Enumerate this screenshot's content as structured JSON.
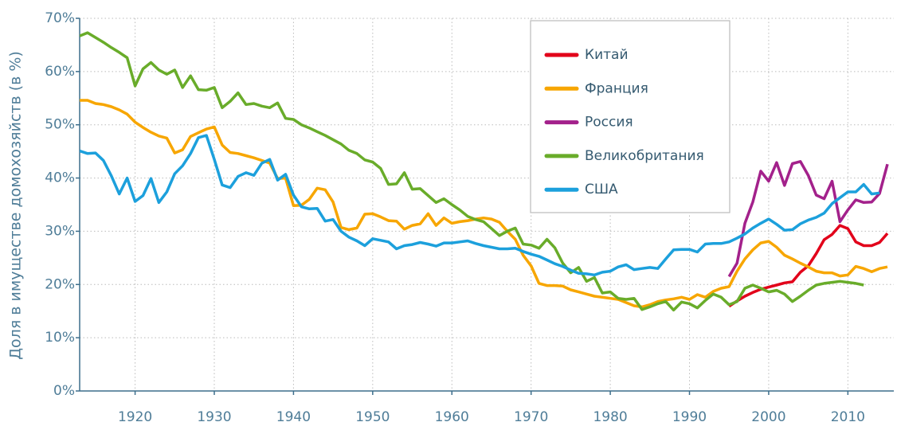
{
  "chart_data": {
    "type": "line",
    "y_label": "Доля в имуществе домохозяйств (в %)",
    "xlim": [
      1913,
      2015.8
    ],
    "xticks": [
      1920,
      1930,
      1940,
      1950,
      1960,
      1970,
      1980,
      1990,
      2000,
      2010
    ],
    "ylim": [
      0,
      70
    ],
    "yticks": [
      {
        "value": 0,
        "label": "0%"
      },
      {
        "value": 10,
        "label": "10%"
      },
      {
        "value": 20,
        "label": "20%"
      },
      {
        "value": 30,
        "label": "30%"
      },
      {
        "value": 40,
        "label": "40%"
      },
      {
        "value": 50,
        "label": "50%"
      },
      {
        "value": 60,
        "label": "60%"
      },
      {
        "value": 70,
        "label": "70%"
      }
    ],
    "grid": true,
    "legend": "upper right",
    "x": [
      1913,
      1914,
      1915,
      1916,
      1917,
      1918,
      1919,
      1920,
      1921,
      1922,
      1923,
      1924,
      1925,
      1926,
      1927,
      1928,
      1929,
      1930,
      1931,
      1932,
      1933,
      1934,
      1935,
      1936,
      1937,
      1938,
      1939,
      1940,
      1941,
      1942,
      1943,
      1944,
      1945,
      1946,
      1947,
      1948,
      1949,
      1950,
      1951,
      1952,
      1953,
      1954,
      1955,
      1956,
      1957,
      1958,
      1959,
      1960,
      1961,
      1962,
      1963,
      1964,
      1965,
      1966,
      1967,
      1968,
      1969,
      1970,
      1971,
      1972,
      1973,
      1974,
      1975,
      1976,
      1977,
      1978,
      1979,
      1980,
      1981,
      1982,
      1983,
      1984,
      1985,
      1986,
      1987,
      1988,
      1989,
      1990,
      1991,
      1992,
      1993,
      1994,
      1995,
      1996,
      1997,
      1998,
      1999,
      2000,
      2001,
      2002,
      2003,
      2004,
      2005,
      2006,
      2007,
      2008,
      2009,
      2010,
      2011,
      2012,
      2013,
      2014,
      2015
    ],
    "series": [
      {
        "name": "Китай",
        "color": "#e2001a",
        "x": [
          1995,
          1996,
          1997,
          1998,
          1999,
          2000,
          2001,
          2002,
          2003,
          2004,
          2005,
          2006,
          2007,
          2008,
          2009,
          2010,
          2011,
          2012,
          2013,
          2014,
          2015
        ],
        "values": [
          15.9,
          16.9,
          17.8,
          18.5,
          19.1,
          19.5,
          19.9,
          20.3,
          20.5,
          22.3,
          23.5,
          25.8,
          28.4,
          29.4,
          31.1,
          30.5,
          28,
          27.3,
          27.3,
          27.9,
          29.6
        ]
      },
      {
        "name": "Франция",
        "color": "#f7a600",
        "values": [
          54.6,
          54.6,
          54,
          53.8,
          53.4,
          52.8,
          52,
          50.5,
          49.5,
          48.6,
          47.9,
          47.5,
          44.7,
          45.3,
          47.8,
          48.5,
          49.2,
          49.6,
          46.2,
          44.8,
          44.6,
          44.2,
          43.8,
          43.3,
          42.8,
          39.9,
          40,
          34.8,
          34.9,
          36,
          38.1,
          37.8,
          35.5,
          30.7,
          30.3,
          30.6,
          33.2,
          33.3,
          32.7,
          32,
          31.9,
          30.4,
          31.1,
          31.4,
          33.3,
          31.1,
          32.5,
          31.5,
          31.8,
          32,
          32.3,
          32.5,
          32.3,
          31.7,
          30,
          28.5,
          25.5,
          23.5,
          20.2,
          19.8,
          19.8,
          19.7,
          19,
          18.6,
          18.2,
          17.8,
          17.6,
          17.4,
          17.2,
          16.6,
          16,
          15.8,
          16.2,
          16.8,
          17.1,
          17.3,
          17.6,
          17.2,
          18.1,
          17.6,
          18.7,
          19.3,
          19.6,
          22.5,
          24.8,
          26.5,
          27.8,
          28.1,
          27,
          25.5,
          24.8,
          24,
          23.3,
          22.5,
          22.2,
          22.2,
          21.6,
          21.8,
          23.4,
          23,
          22.4,
          23,
          23.3
        ]
      },
      {
        "name": "Россия",
        "color": "#a3218b",
        "x": [
          1995,
          1996,
          1997,
          1998,
          1999,
          2000,
          2001,
          2002,
          2003,
          2004,
          2005,
          2006,
          2007,
          2008,
          2009,
          2010,
          2011,
          2012,
          2013,
          2014,
          2015
        ],
        "values": [
          21.5,
          24,
          31.5,
          35.5,
          41.3,
          39.4,
          42.9,
          38.6,
          42.7,
          43.1,
          40.5,
          36.8,
          36.1,
          39.4,
          31.8,
          34,
          35.9,
          35.4,
          35.5,
          37.1,
          42.6
        ]
      },
      {
        "name": "Великобритания",
        "color": "#69ac2a",
        "values": [
          66.7,
          67.3,
          66.4,
          65.5,
          64.5,
          63.6,
          62.6,
          57.3,
          60.5,
          61.7,
          60.3,
          59.5,
          60.3,
          57,
          59.2,
          56.6,
          56.5,
          57,
          53.2,
          54.4,
          56,
          53.8,
          54,
          53.5,
          53.2,
          54.1,
          51.2,
          51,
          50,
          49.4,
          48.7,
          48,
          47.2,
          46.4,
          45.2,
          44.6,
          43.4,
          43,
          41.8,
          38.8,
          38.9,
          41,
          37.9,
          38,
          36.7,
          35.4,
          36.1,
          35,
          34,
          32.8,
          32.2,
          31.8,
          30.5,
          29.2,
          30,
          30.6,
          27.6,
          27.4,
          26.8,
          28.5,
          26.9,
          24,
          22.2,
          23.2,
          20.6,
          21.3,
          18.4,
          18.6,
          17.4,
          17.2,
          17.4,
          15.3,
          15.8,
          16.4,
          16.8,
          15.2,
          16.7,
          16.4,
          15.6,
          17,
          18.2,
          17.6,
          16.2,
          16.8,
          19.3,
          19.9,
          19.3,
          18.6,
          18.9,
          18.2,
          16.8,
          17.8,
          18.9,
          19.9,
          20.2,
          20.4,
          20.6,
          20.4,
          20.2,
          19.9,
          null,
          null,
          null
        ]
      },
      {
        "name": "США",
        "color": "#1ca0dc",
        "values": [
          45.1,
          44.6,
          44.7,
          43.3,
          40.4,
          37,
          40,
          35.6,
          36.7,
          39.9,
          35.4,
          37.4,
          40.8,
          42.3,
          44.6,
          47.6,
          48,
          43.5,
          38.7,
          38.2,
          40.3,
          41,
          40.5,
          42.8,
          43.5,
          39.6,
          40.7,
          36.8,
          34.6,
          34.2,
          34.3,
          31.9,
          32.2,
          30,
          28.9,
          28.2,
          27.3,
          28.6,
          28.3,
          28,
          26.7,
          27.3,
          27.5,
          27.9,
          27.6,
          27.2,
          27.8,
          27.8,
          28,
          28.2,
          27.7,
          27.3,
          27,
          26.7,
          26.7,
          26.8,
          26.2,
          25.7,
          25.3,
          24.6,
          23.9,
          23.4,
          22.7,
          22.1,
          22,
          21.8,
          22.3,
          22.5,
          23.3,
          23.7,
          22.8,
          23,
          23.2,
          23,
          24.8,
          26.5,
          26.6,
          26.6,
          26.1,
          27.6,
          27.7,
          27.7,
          28,
          28.7,
          29.5,
          30.6,
          31.5,
          32.3,
          31.3,
          30.2,
          30.3,
          31.4,
          32.1,
          32.6,
          33.4,
          35.2,
          36.3,
          37.4,
          37.4,
          38.8,
          37,
          37.2,
          null
        ]
      }
    ]
  }
}
